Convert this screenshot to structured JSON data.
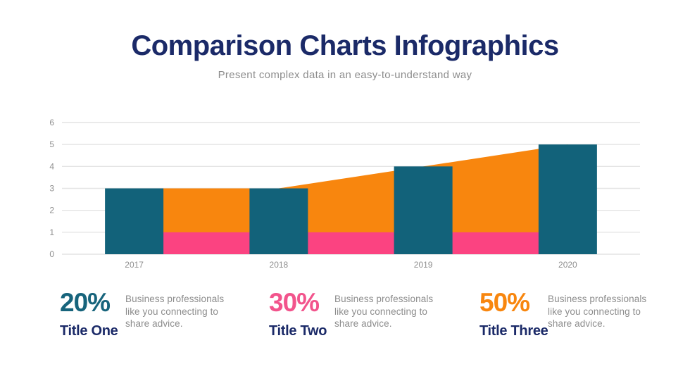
{
  "page": {
    "title": "Comparison Charts Infographics",
    "subtitle": "Present complex data in an easy-to-understand way"
  },
  "colors": {
    "navy": "#1b2a68",
    "teal": "#12627a",
    "orange": "#f8860e",
    "pink": "#fb4381",
    "gray_text": "#8c8c8c",
    "axis_label": "#8f8f8f",
    "gridline": "#e4e4e4"
  },
  "chart_data": {
    "type": "combo: bar + area",
    "categories": [
      "2017",
      "2018",
      "2019",
      "2020"
    ],
    "series": [
      {
        "name": "columns",
        "type": "bar",
        "color": "#12627a",
        "values": [
          3,
          3,
          4,
          5
        ]
      },
      {
        "name": "area-upper",
        "type": "area",
        "color": "#f8860e",
        "values": [
          3,
          3,
          4,
          5
        ]
      },
      {
        "name": "area-lower",
        "type": "area",
        "color": "#fb4381",
        "values": [
          1,
          1,
          1,
          1
        ]
      }
    ],
    "ylim": [
      0,
      6
    ],
    "yticks": [
      0,
      1,
      2,
      3,
      4,
      5,
      6
    ],
    "xlabel": "",
    "ylabel": "",
    "grid": true,
    "legend": "none"
  },
  "stats": [
    {
      "value": "20%",
      "title": "Title One",
      "description": "Business professionals like you connecting to share advice.",
      "color": "#17647c"
    },
    {
      "value": "30%",
      "title": "Title Two",
      "description": "Business professionals like you connecting to share advice.",
      "color": "#f2548c"
    },
    {
      "value": "50%",
      "title": "Title Three",
      "description": "Business professionals like you connecting to share advice.",
      "color": "#f8860e"
    }
  ]
}
